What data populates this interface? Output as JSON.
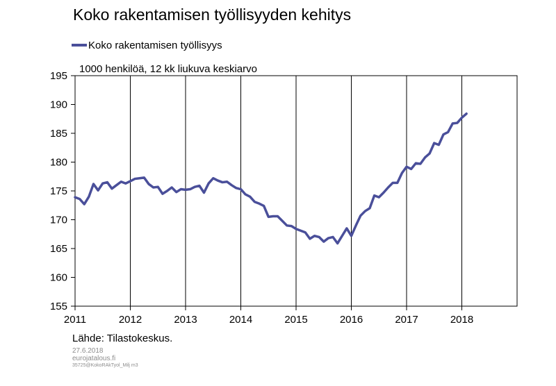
{
  "page": {
    "title": "Koko rakentamisen työllisyyden kehitys",
    "source": "Lähde: Tilastokeskus.",
    "footer": {
      "date": "27.6.2018",
      "site": "eurojatalous.fi",
      "code": "35725@KokoRAkTyol_Milj m3"
    }
  },
  "chart_data": {
    "type": "line",
    "unit_label": "1000 henkilöä, 12 kk liukuva keskiarvo",
    "xlabel": "",
    "ylabel": "",
    "xlim": [
      2011,
      2019
    ],
    "ylim": [
      155,
      195
    ],
    "x_ticks": [
      "2011",
      "2012",
      "2013",
      "2014",
      "2015",
      "2016",
      "2017",
      "2018"
    ],
    "y_ticks": [
      "155",
      "160",
      "165",
      "170",
      "175",
      "180",
      "185",
      "190",
      "195"
    ],
    "grid": "vertical, yearly",
    "legend_position": "top-left",
    "series": [
      {
        "name": "Koko rakentamisen työllisyys",
        "color": "#4a4f9a",
        "x": [
          "2011-01",
          "2011-02",
          "2011-03",
          "2011-04",
          "2011-05",
          "2011-06",
          "2011-07",
          "2011-08",
          "2011-09",
          "2011-10",
          "2011-11",
          "2011-12",
          "2012-01",
          "2012-02",
          "2012-03",
          "2012-04",
          "2012-05",
          "2012-06",
          "2012-07",
          "2012-08",
          "2012-09",
          "2012-10",
          "2012-11",
          "2012-12",
          "2013-01",
          "2013-02",
          "2013-03",
          "2013-04",
          "2013-05",
          "2013-06",
          "2013-07",
          "2013-08",
          "2013-09",
          "2013-10",
          "2013-11",
          "2013-12",
          "2014-01",
          "2014-02",
          "2014-03",
          "2014-04",
          "2014-05",
          "2014-06",
          "2014-07",
          "2014-08",
          "2014-09",
          "2014-10",
          "2014-11",
          "2014-12",
          "2015-01",
          "2015-02",
          "2015-03",
          "2015-04",
          "2015-05",
          "2015-06",
          "2015-07",
          "2015-08",
          "2015-09",
          "2015-10",
          "2015-11",
          "2015-12",
          "2016-01",
          "2016-02",
          "2016-03",
          "2016-04",
          "2016-05",
          "2016-06",
          "2016-07",
          "2016-08",
          "2016-09",
          "2016-10",
          "2016-11",
          "2016-12",
          "2017-01",
          "2017-02",
          "2017-03",
          "2017-04",
          "2017-05",
          "2017-06",
          "2017-07",
          "2017-08",
          "2017-09",
          "2017-10",
          "2017-11",
          "2017-12",
          "2018-01",
          "2018-02"
        ],
        "values": [
          173.9,
          173.6,
          172.7,
          174.0,
          176.2,
          175.1,
          176.3,
          176.5,
          175.4,
          176.0,
          176.6,
          176.3,
          176.7,
          177.1,
          177.2,
          177.3,
          176.2,
          175.6,
          175.7,
          174.5,
          175.0,
          175.6,
          174.8,
          175.3,
          175.2,
          175.3,
          175.7,
          175.9,
          174.7,
          176.3,
          177.2,
          176.8,
          176.5,
          176.6,
          176.0,
          175.5,
          175.3,
          174.4,
          174.0,
          173.1,
          172.8,
          172.4,
          170.5,
          170.6,
          170.6,
          169.8,
          169.0,
          168.9,
          168.4,
          168.1,
          167.8,
          166.7,
          167.2,
          167.0,
          166.2,
          166.8,
          167.0,
          165.9,
          167.2,
          168.5,
          167.2,
          169.0,
          170.7,
          171.5,
          172.0,
          174.2,
          173.9,
          174.7,
          175.6,
          176.4,
          176.4,
          178.1,
          179.2,
          178.8,
          179.8,
          179.7,
          180.8,
          181.5,
          183.3,
          183.0,
          184.8,
          185.2,
          186.7,
          186.8,
          187.7,
          188.4
        ]
      }
    ]
  }
}
